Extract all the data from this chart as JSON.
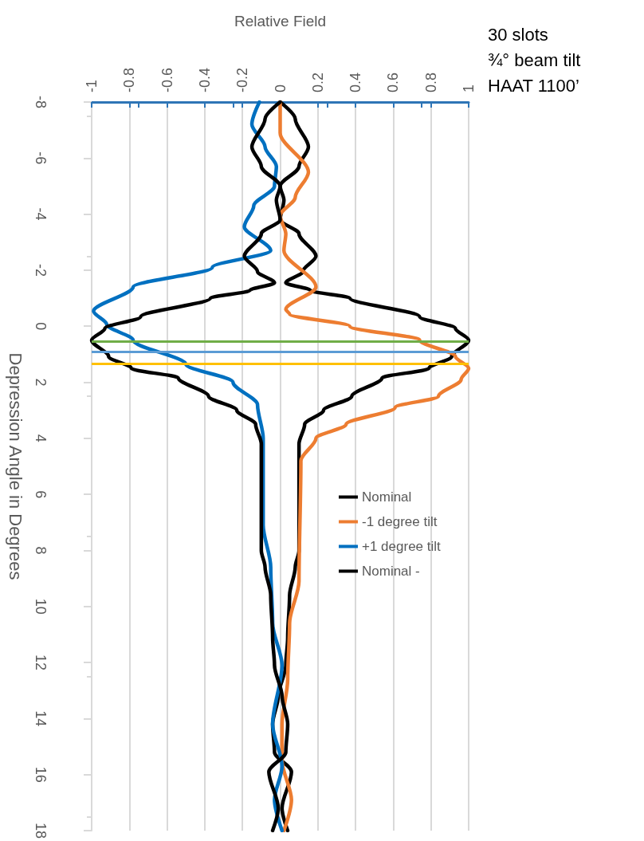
{
  "chart_data": {
    "type": "line",
    "xlabel": "Relative Field",
    "ylabel": "Depression Angle in Degrees",
    "annotations": [
      "30 slots",
      "¾° beam tilt",
      "HAAT 1100’"
    ],
    "ylim": [
      18,
      -8
    ],
    "yticks": [
      -8,
      -6,
      -4,
      -2,
      0,
      2,
      4,
      6,
      8,
      10,
      12,
      14,
      16,
      18
    ],
    "xlim": [
      -1,
      1
    ],
    "xticks": [
      -1,
      -0.8,
      -0.6,
      -0.4,
      -0.2,
      0,
      0.2,
      0.4,
      0.6,
      0.8,
      1
    ],
    "grid": "x",
    "legend": "right",
    "marker": "none",
    "line_style": "solid",
    "ref_lines": [
      {
        "axis": "y",
        "value": 0.55,
        "color": "#70ad47"
      },
      {
        "axis": "y",
        "value": 0.9,
        "color": "#5b9bd5"
      },
      {
        "axis": "y",
        "value": 1.35,
        "color": "#ffc000"
      }
    ],
    "series": [
      {
        "name": "Nominal",
        "color": "#000000",
        "values": [
          -8,
          -7.4,
          -6.4,
          -5.7,
          -5.0,
          -4.5,
          -3.8,
          -3.3,
          -2.5,
          -1.95,
          -1.55,
          -1.28,
          -1.0,
          -0.34,
          0.08,
          0.5,
          1.08,
          1.5,
          1.85,
          2.5,
          3.0,
          3.5,
          4.2,
          6,
          8,
          8.6,
          9.6,
          11.1,
          12.1,
          13.2,
          14.2,
          15.2,
          15.9,
          17.2,
          18
        ],
        "x": [
          0,
          0.08,
          0.15,
          0.1,
          0,
          0.02,
          0,
          0.1,
          0.19,
          0.12,
          0.03,
          0.16,
          0.37,
          0.74,
          0.93,
          1.0,
          0.91,
          0.79,
          0.54,
          0.38,
          0.23,
          0.13,
          0.1,
          0.1,
          0.1,
          0.08,
          0.05,
          0.04,
          0.03,
          -0.01,
          -0.04,
          -0.03,
          0.06,
          0.01,
          0.04
        ]
      },
      {
        "name": "-1 degree tilt",
        "color": "#ed7d31",
        "values": [
          -8,
          -6.9,
          -5.5,
          -4.6,
          -3.95,
          -3.3,
          -2.7,
          -1.4,
          -0.6,
          -0.43,
          0,
          0.5,
          1.08,
          1.5,
          1.9,
          2.5,
          2.9,
          3.5,
          4.0,
          4.8,
          9.1,
          10.6,
          12.6,
          14.2,
          15.5,
          16.9,
          18
        ],
        "x": [
          0,
          0,
          0.15,
          0.08,
          0,
          0.03,
          0.02,
          0.19,
          0.03,
          0.05,
          0.37,
          0.74,
          0.93,
          1.0,
          0.96,
          0.84,
          0.61,
          0.35,
          0.19,
          0.11,
          0.1,
          0.05,
          0.04,
          0.01,
          0.01,
          0.06,
          0.02
        ]
      },
      {
        "name": "+1 degree tilt",
        "color": "#0070c0",
        "values": [
          -8,
          -7.2,
          -6.4,
          -5.7,
          -5.0,
          -4.3,
          -3.55,
          -2.7,
          -2.1,
          -1.4,
          -0.54,
          -0.06,
          0.5,
          1.36,
          2.0,
          2.8,
          4.0,
          7.1,
          8.6,
          10.6,
          12.1,
          14.2,
          15.7,
          16.9,
          18
        ],
        "x": [
          -0.11,
          -0.15,
          -0.08,
          -0.02,
          -0.03,
          -0.14,
          -0.19,
          -0.05,
          -0.36,
          -0.78,
          -0.99,
          -0.92,
          -0.78,
          -0.5,
          -0.25,
          -0.12,
          -0.09,
          -0.09,
          -0.05,
          -0.04,
          0.01,
          -0.04,
          0.01,
          -0.03,
          0.01
        ]
      },
      {
        "name": "Nominal -",
        "color": "#000000",
        "values": [
          -8,
          -7.4,
          -6.4,
          -5.7,
          -5.0,
          -4.5,
          -3.8,
          -3.3,
          -2.5,
          -1.95,
          -1.55,
          -1.28,
          -1.0,
          -0.34,
          0.08,
          0.5,
          1.08,
          1.5,
          1.85,
          2.5,
          3.0,
          3.5,
          4.2,
          6,
          8,
          8.6,
          9.6,
          11.1,
          12.1,
          13.2,
          14.2,
          15.2,
          15.9,
          17.2,
          18
        ],
        "x": [
          0,
          -0.08,
          -0.15,
          -0.1,
          0,
          -0.02,
          0,
          -0.1,
          -0.19,
          -0.12,
          -0.03,
          -0.16,
          -0.37,
          -0.74,
          -0.93,
          -1.0,
          -0.91,
          -0.79,
          -0.54,
          -0.38,
          -0.23,
          -0.13,
          -0.1,
          -0.1,
          -0.1,
          -0.08,
          -0.05,
          -0.04,
          -0.03,
          0.01,
          0.04,
          0.03,
          -0.06,
          -0.01,
          -0.04
        ]
      }
    ]
  }
}
